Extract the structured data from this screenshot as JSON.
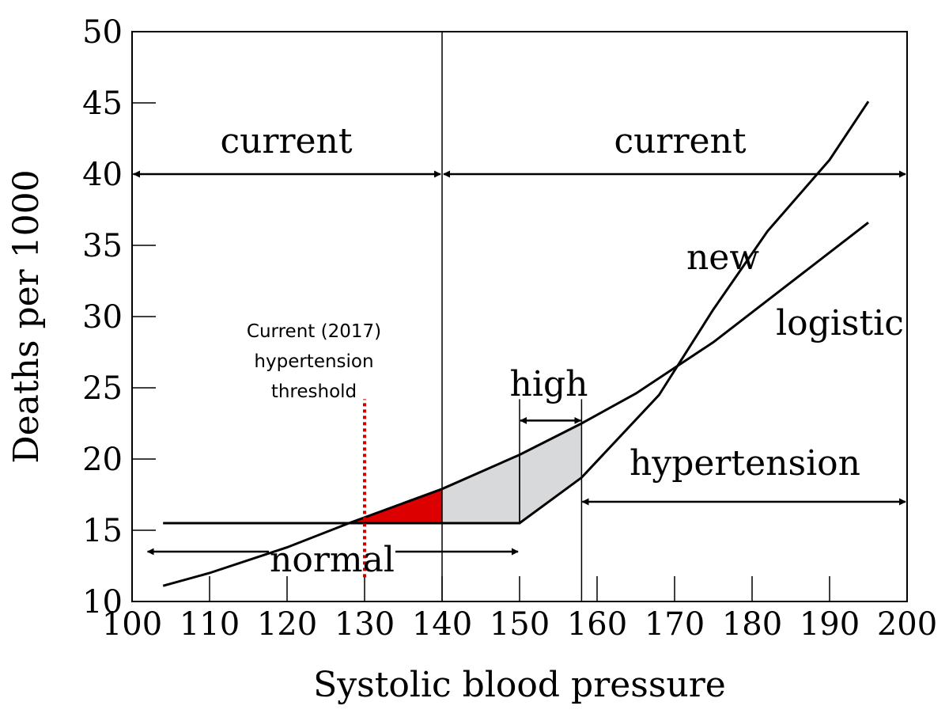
{
  "chart_data": {
    "type": "line",
    "xlabel": "Systolic blood pressure",
    "ylabel": "Deaths per 1000",
    "xlim": [
      100,
      200
    ],
    "ylim": [
      10,
      50
    ],
    "x_ticks": [
      "100",
      "110",
      "120",
      "130",
      "140",
      "150",
      "160",
      "170",
      "180",
      "190",
      "200"
    ],
    "y_ticks": [
      "10",
      "15",
      "20",
      "25",
      "30",
      "35",
      "40",
      "45",
      "50"
    ],
    "grid": false,
    "series": [
      {
        "name": "logistic",
        "x": [
          104,
          110,
          120,
          128,
          140,
          150,
          158,
          165,
          175,
          185,
          195
        ],
        "y": [
          11.1,
          12.0,
          13.8,
          15.5,
          17.9,
          20.3,
          22.5,
          24.6,
          28.2,
          32.4,
          36.6
        ]
      },
      {
        "name": "new",
        "x": [
          104,
          130,
          150,
          158,
          168,
          175,
          182,
          190,
          195
        ],
        "y": [
          15.5,
          15.5,
          15.5,
          18.7,
          24.5,
          30.5,
          36.0,
          41.0,
          45.1
        ]
      }
    ],
    "threshold": {
      "x": 130,
      "y_range": [
        11.7,
        24.2
      ],
      "color": "#cc0000",
      "label": [
        "Current (2017)",
        "hypertension",
        "threshold"
      ]
    },
    "shaded_regions": [
      {
        "color": "#dd0000",
        "x_range": [
          128,
          140
        ]
      },
      {
        "color": "#d8d9db",
        "x_range": [
          140,
          158
        ]
      }
    ],
    "annotations": {
      "current_left": {
        "text": "current",
        "x_range": [
          100,
          140
        ],
        "y": 40
      },
      "current_right": {
        "text": "current",
        "x_range": [
          140,
          200
        ],
        "y": 40
      },
      "normal": {
        "text": "normal",
        "x_range": [
          102,
          150
        ],
        "y": 13.5
      },
      "high": {
        "text": "high",
        "x_range": [
          150,
          158
        ],
        "y": 22.7
      },
      "hypertension": {
        "text": "hypertension",
        "x_range": [
          158,
          200
        ],
        "y": 17.0
      }
    },
    "vertical_lines": [
      140
    ],
    "colors": {
      "line": "#000000",
      "red_fill": "#dd0000",
      "gray_fill": "#d8d9db",
      "threshold": "#cc0000"
    }
  }
}
